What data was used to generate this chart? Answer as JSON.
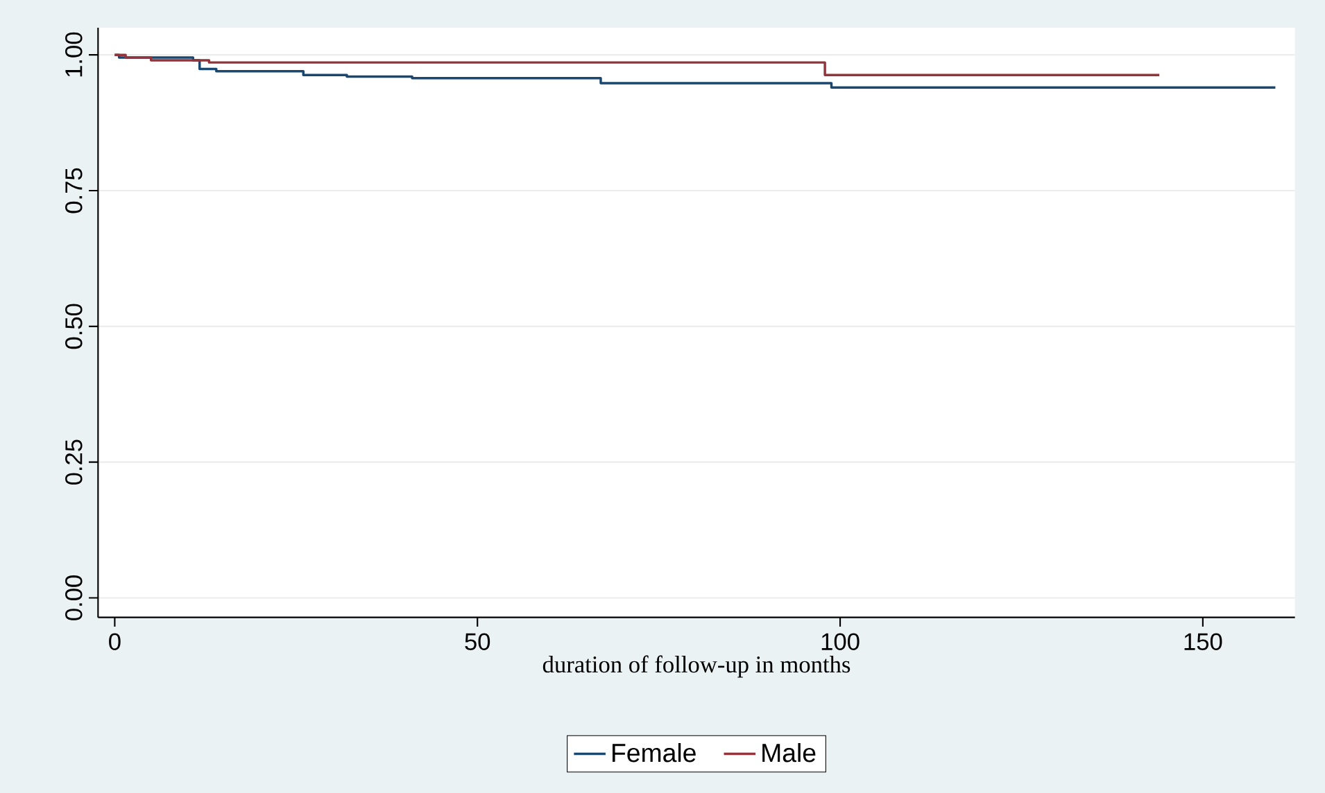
{
  "chart_data": {
    "type": "step",
    "xlabel": "duration of follow-up in months",
    "xlim": [
      -2.3,
      162.7
    ],
    "ylim": [
      -0.036,
      1.05
    ],
    "xticks": [
      0,
      50,
      100,
      150
    ],
    "yticks": [
      {
        "value": 0,
        "label": "0.00"
      },
      {
        "value": 0.25,
        "label": "0.25"
      },
      {
        "value": 0.5,
        "label": "0.50"
      },
      {
        "value": 0.75,
        "label": "0.75"
      },
      {
        "value": 1,
        "label": "1.00"
      }
    ],
    "grid": "y",
    "legend": "bottom",
    "series": [
      {
        "name": "Female",
        "color": "#1a476f",
        "x": [
          0,
          0.6,
          10.8,
          11.7,
          14,
          26,
          32,
          41,
          67,
          98.8,
          160
        ],
        "values": [
          1.0,
          0.995,
          0.99,
          0.974,
          0.97,
          0.963,
          0.96,
          0.957,
          0.948,
          0.94,
          0.94
        ]
      },
      {
        "name": "Male",
        "color": "#90353b",
        "x": [
          0,
          1.5,
          5,
          13,
          97.9,
          144
        ],
        "values": [
          1.0,
          0.995,
          0.99,
          0.986,
          0.963,
          0.963
        ]
      }
    ]
  }
}
